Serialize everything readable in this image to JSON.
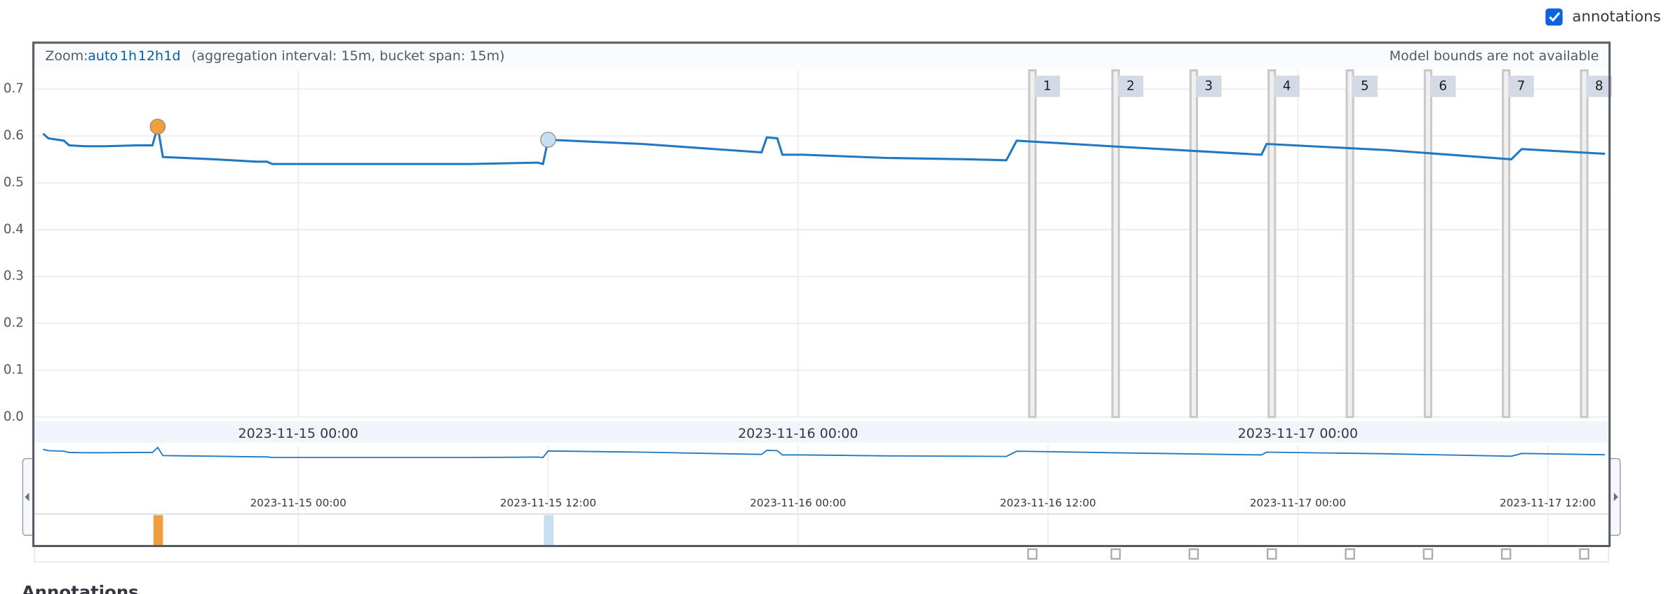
{
  "toggle": {
    "label": "annotations",
    "checked": true
  },
  "zoom": {
    "label": "Zoom:",
    "options": [
      "auto",
      "1h",
      "12h",
      "1d"
    ],
    "info": "(aggregation interval: 15m, bucket span: 15m)"
  },
  "model_bounds_note": "Model bounds are not available",
  "section_heading": "Annotations",
  "chart_data": {
    "type": "line",
    "x": [
      "2023-11-14 11:45",
      "2023-11-14 12:00",
      "2023-11-14 12:45",
      "2023-11-14 13:00",
      "2023-11-14 13:45",
      "2023-11-14 14:45",
      "2023-11-14 16:15",
      "2023-11-14 17:00",
      "2023-11-14 17:15",
      "2023-11-14 17:30",
      "2023-11-14 20:00",
      "2023-11-14 22:00",
      "2023-11-14 22:30",
      "2023-11-14 22:45",
      "2023-11-15 01:00",
      "2023-11-15 04:45",
      "2023-11-15 08:15",
      "2023-11-15 11:30",
      "2023-11-15 11:45",
      "2023-11-15 12:00",
      "2023-11-15 16:30",
      "2023-11-15 22:15",
      "2023-11-15 22:30",
      "2023-11-15 23:00",
      "2023-11-15 23:15",
      "2023-11-16 00:15",
      "2023-11-16 04:15",
      "2023-11-16 08:15",
      "2023-11-16 10:00",
      "2023-11-16 10:30",
      "2023-11-16 15:00",
      "2023-11-16 22:15",
      "2023-11-16 22:30",
      "2023-11-17 04:15",
      "2023-11-17 10:15",
      "2023-11-17 10:45",
      "2023-11-17 14:45"
    ],
    "series": [
      {
        "color": "#1f78c1",
        "values": [
          0.605,
          0.595,
          0.59,
          0.58,
          0.578,
          0.578,
          0.58,
          0.58,
          0.62,
          0.555,
          0.55,
          0.545,
          0.545,
          0.54,
          0.54,
          0.54,
          0.54,
          0.543,
          0.54,
          0.592,
          0.583,
          0.565,
          0.597,
          0.595,
          0.56,
          0.56,
          0.553,
          0.55,
          0.548,
          0.59,
          0.578,
          0.56,
          0.583,
          0.57,
          0.55,
          0.572,
          0.562
        ]
      }
    ],
    "xlim": [
      "2023-11-14 11:20",
      "2023-11-17 14:55"
    ],
    "xticks": [
      "2023-11-15 00:00",
      "2023-11-16 00:00",
      "2023-11-17 00:00"
    ],
    "context_xticks": [
      "2023-11-15 00:00",
      "2023-11-15 12:00",
      "2023-11-16 00:00",
      "2023-11-16 12:00",
      "2023-11-17 00:00",
      "2023-11-17 12:00"
    ],
    "ylim": [
      0,
      0.74
    ],
    "yticks": [
      {
        "value": 0,
        "label": "0.0"
      },
      0.1,
      0.2,
      0.3,
      0.4,
      0.5,
      0.6,
      0.7
    ],
    "grid": true,
    "anomalies": [
      {
        "x": "2023-11-14 17:15",
        "value": 0.62,
        "color": "#f19e3c"
      },
      {
        "x": "2023-11-15 12:00",
        "value": 0.592,
        "color": "#c8dff0"
      }
    ],
    "annotations": [
      {
        "label": "1",
        "x": "2023-11-16 11:15"
      },
      {
        "label": "2",
        "x": "2023-11-16 15:15"
      },
      {
        "label": "3",
        "x": "2023-11-16 19:00"
      },
      {
        "label": "4",
        "x": "2023-11-16 22:45"
      },
      {
        "label": "5",
        "x": "2023-11-17 02:30"
      },
      {
        "label": "6",
        "x": "2023-11-17 06:15"
      },
      {
        "label": "7",
        "x": "2023-11-17 10:00"
      },
      {
        "label": "8",
        "x": "2023-11-17 13:45"
      }
    ]
  }
}
